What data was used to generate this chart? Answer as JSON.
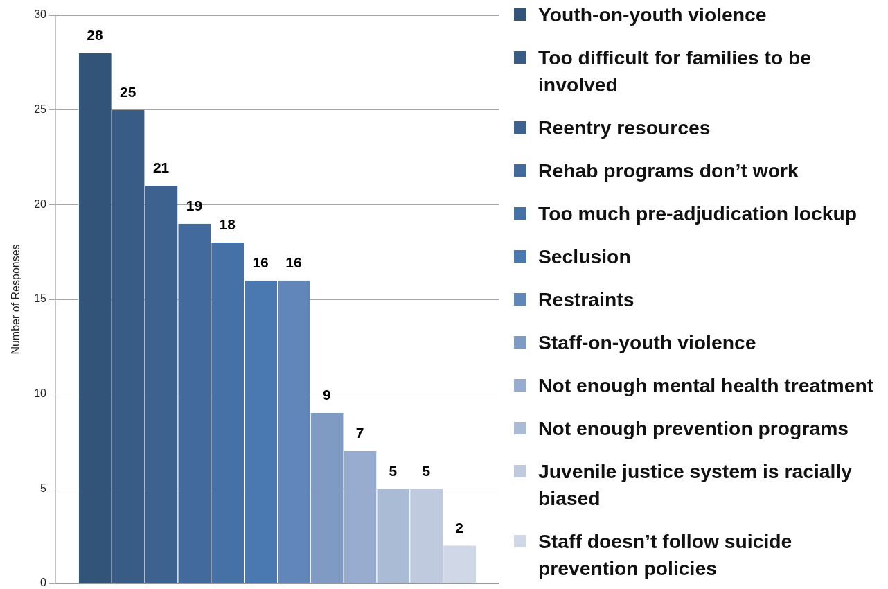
{
  "chart_data": {
    "type": "bar",
    "ylabel": "Number of Responses",
    "categories": [
      null
    ],
    "series": [
      {
        "name": "Youth-on-youth violence",
        "color": "#325478",
        "values": [
          28
        ]
      },
      {
        "name": "Too difficult for families to be involved",
        "color": "#395c87",
        "values": [
          25
        ]
      },
      {
        "name": "Reentry resources",
        "color": "#3d6290",
        "values": [
          21
        ]
      },
      {
        "name": "Rehab programs don’t work",
        "color": "#436a9c",
        "values": [
          19
        ]
      },
      {
        "name": "Too much pre-adjudication lockup",
        "color": "#4671a6",
        "values": [
          18
        ]
      },
      {
        "name": "Seclusion",
        "color": "#4a79b1",
        "values": [
          16
        ]
      },
      {
        "name": "Restraints",
        "color": "#6186b9",
        "values": [
          16
        ]
      },
      {
        "name": "Staff-on-youth violence",
        "color": "#7f9bc3",
        "values": [
          9
        ]
      },
      {
        "name": "Not enough mental health treatment",
        "color": "#97acce",
        "values": [
          7
        ]
      },
      {
        "name": "Not enough prevention programs",
        "color": "#aabbd6",
        "values": [
          5
        ]
      },
      {
        "name": "Juvenile justice system is racially biased",
        "color": "#bfcadf",
        "values": [
          5
        ]
      },
      {
        "name": "Staff doesn’t follow suicide prevention policies",
        "color": "#d0d8e8",
        "values": [
          2
        ]
      }
    ],
    "ylim": [
      0,
      30
    ],
    "yticks": [
      0,
      5,
      10,
      15,
      20,
      25,
      30
    ],
    "grid": "y",
    "legend": "right",
    "data_labels": true
  }
}
